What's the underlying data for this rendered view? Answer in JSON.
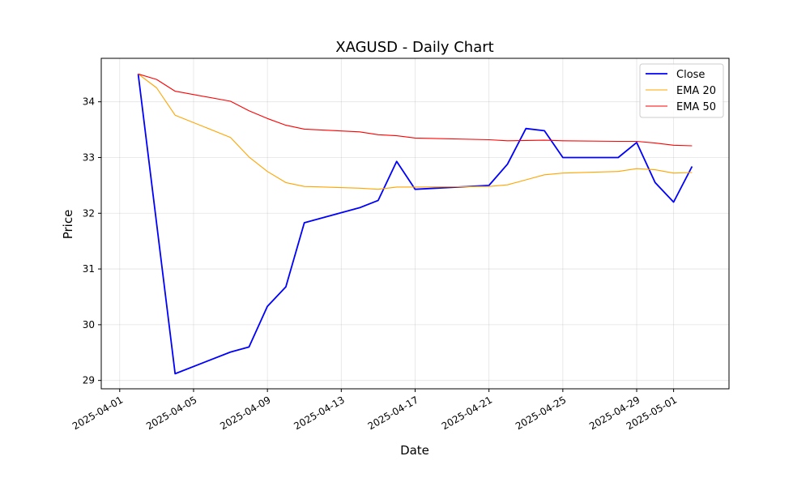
{
  "chart_data": {
    "type": "line",
    "title": "XAGUSD - Daily Chart",
    "xlabel": "Date",
    "ylabel": "Price",
    "x_ticks": [
      "2025-04-01",
      "2025-04-05",
      "2025-04-09",
      "2025-04-13",
      "2025-04-17",
      "2025-04-21",
      "2025-04-25",
      "2025-04-29",
      "2025-05-01"
    ],
    "y_ticks": [
      29,
      30,
      31,
      32,
      33,
      34
    ],
    "xlim": [
      "2025-03-31",
      "2025-05-04"
    ],
    "ylim": [
      28.85,
      34.78
    ],
    "grid": true,
    "legend_position": "top-right",
    "series": [
      {
        "name": "Close",
        "color": "#0000ff",
        "points": [
          [
            "2025-04-02",
            34.5
          ],
          [
            "2025-04-04",
            29.12
          ],
          [
            "2025-04-07",
            29.51
          ],
          [
            "2025-04-08",
            29.6
          ],
          [
            "2025-04-09",
            30.33
          ],
          [
            "2025-04-10",
            30.68
          ],
          [
            "2025-04-11",
            31.83
          ],
          [
            "2025-04-14",
            32.1
          ],
          [
            "2025-04-15",
            32.23
          ],
          [
            "2025-04-16",
            32.93
          ],
          [
            "2025-04-17",
            32.43
          ],
          [
            "2025-04-21",
            32.5
          ],
          [
            "2025-04-22",
            32.88
          ],
          [
            "2025-04-23",
            33.52
          ],
          [
            "2025-04-24",
            33.48
          ],
          [
            "2025-04-25",
            33.0
          ],
          [
            "2025-04-28",
            33.0
          ],
          [
            "2025-04-29",
            33.27
          ],
          [
            "2025-04-30",
            32.55
          ],
          [
            "2025-05-01",
            32.2
          ],
          [
            "2025-05-02",
            32.84
          ]
        ]
      },
      {
        "name": "EMA 20",
        "color": "#ffa500",
        "points": [
          [
            "2025-04-02",
            34.5
          ],
          [
            "2025-04-03",
            34.25
          ],
          [
            "2025-04-04",
            33.76
          ],
          [
            "2025-04-07",
            33.36
          ],
          [
            "2025-04-08",
            33.01
          ],
          [
            "2025-04-09",
            32.75
          ],
          [
            "2025-04-10",
            32.55
          ],
          [
            "2025-04-11",
            32.48
          ],
          [
            "2025-04-14",
            32.45
          ],
          [
            "2025-04-15",
            32.43
          ],
          [
            "2025-04-16",
            32.47
          ],
          [
            "2025-04-17",
            32.47
          ],
          [
            "2025-04-21",
            32.48
          ],
          [
            "2025-04-22",
            32.51
          ],
          [
            "2025-04-23",
            32.6
          ],
          [
            "2025-04-24",
            32.69
          ],
          [
            "2025-04-25",
            32.72
          ],
          [
            "2025-04-28",
            32.75
          ],
          [
            "2025-04-29",
            32.8
          ],
          [
            "2025-04-30",
            32.78
          ],
          [
            "2025-05-01",
            32.72
          ],
          [
            "2025-05-02",
            32.73
          ]
        ]
      },
      {
        "name": "EMA 50",
        "color": "#ff0000",
        "points": [
          [
            "2025-04-02",
            34.5
          ],
          [
            "2025-04-03",
            34.4
          ],
          [
            "2025-04-04",
            34.19
          ],
          [
            "2025-04-07",
            34.01
          ],
          [
            "2025-04-08",
            33.84
          ],
          [
            "2025-04-09",
            33.7
          ],
          [
            "2025-04-10",
            33.58
          ],
          [
            "2025-04-11",
            33.51
          ],
          [
            "2025-04-14",
            33.46
          ],
          [
            "2025-04-15",
            33.41
          ],
          [
            "2025-04-16",
            33.39
          ],
          [
            "2025-04-17",
            33.35
          ],
          [
            "2025-04-21",
            33.32
          ],
          [
            "2025-04-22",
            33.3
          ],
          [
            "2025-04-24",
            33.31
          ],
          [
            "2025-04-25",
            33.3
          ],
          [
            "2025-04-28",
            33.29
          ],
          [
            "2025-04-29",
            33.29
          ],
          [
            "2025-04-30",
            33.26
          ],
          [
            "2025-05-01",
            33.22
          ],
          [
            "2025-05-02",
            33.21
          ]
        ]
      }
    ]
  }
}
